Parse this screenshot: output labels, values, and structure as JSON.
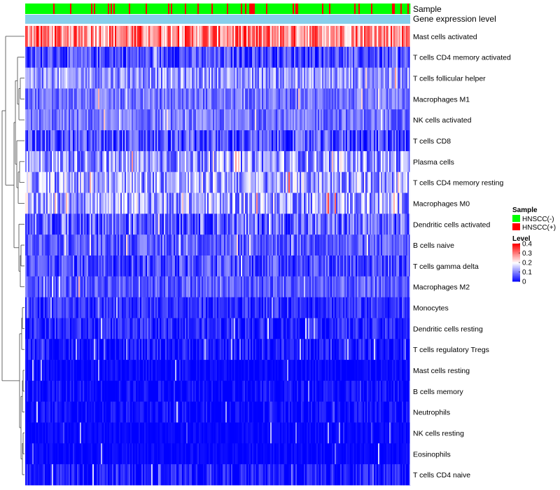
{
  "chart_data": {
    "type": "heatmap",
    "annotation_tracks": [
      {
        "name": "Sample"
      },
      {
        "name": "Gene expression level"
      }
    ],
    "rows": [
      {
        "label": "Mast cells activated",
        "mean": 0.3,
        "spread": 0.1
      },
      {
        "label": "T cells CD4 memory activated",
        "mean": 0.06,
        "spread": 0.06
      },
      {
        "label": "T cells follicular helper",
        "mean": 0.12,
        "spread": 0.07
      },
      {
        "label": "Macrophages M1",
        "mean": 0.09,
        "spread": 0.05
      },
      {
        "label": "NK cells activated",
        "mean": 0.09,
        "spread": 0.05
      },
      {
        "label": "T cells CD8",
        "mean": 0.06,
        "spread": 0.07
      },
      {
        "label": "Plasma cells",
        "mean": 0.12,
        "spread": 0.09
      },
      {
        "label": "T cells CD4 memory resting",
        "mean": 0.13,
        "spread": 0.09
      },
      {
        "label": "Macrophages M0",
        "mean": 0.13,
        "spread": 0.09
      },
      {
        "label": "Dendritic cells activated",
        "mean": 0.08,
        "spread": 0.08
      },
      {
        "label": "B cells naive",
        "mean": 0.07,
        "spread": 0.05
      },
      {
        "label": "T cells gamma delta",
        "mean": 0.06,
        "spread": 0.06
      },
      {
        "label": "Macrophages M2",
        "mean": 0.07,
        "spread": 0.05
      },
      {
        "label": "Monocytes",
        "mean": 0.04,
        "spread": 0.04
      },
      {
        "label": "Dendritic cells resting",
        "mean": 0.03,
        "spread": 0.04
      },
      {
        "label": "T cells regulatory  Tregs",
        "mean": 0.02,
        "spread": 0.04
      },
      {
        "label": "Mast cells resting",
        "mean": 0.005,
        "spread": 0.02
      },
      {
        "label": "B cells memory",
        "mean": 0.01,
        "spread": 0.03
      },
      {
        "label": "Neutrophils",
        "mean": 0.01,
        "spread": 0.03
      },
      {
        "label": "NK cells resting",
        "mean": 0.005,
        "spread": 0.015
      },
      {
        "label": "Eosinophils",
        "mean": 0.005,
        "spread": 0.015
      },
      {
        "label": "T cells CD4 naive",
        "mean": 0.02,
        "spread": 0.04
      }
    ],
    "n_samples": 275,
    "value_range": [
      0,
      0.4
    ],
    "legend": {
      "sample_title": "Sample",
      "sample_items": [
        {
          "label": "HNSCC(-)",
          "color": "#00ff00"
        },
        {
          "label": "HNSCC(+)",
          "color": "#ff0000"
        }
      ],
      "level_title": "Level",
      "level_ticks": [
        "0.4",
        "0.3",
        "0.2",
        "0.1",
        "0"
      ],
      "level_tick_values": [
        0.4,
        0.3,
        0.2,
        0.1,
        0
      ]
    },
    "color_scale": [
      "#0000ff",
      "#ffffff",
      "#ff0000"
    ],
    "track_color_expression": "#87ceeb",
    "dendrogram": "row clustering tree on left"
  }
}
